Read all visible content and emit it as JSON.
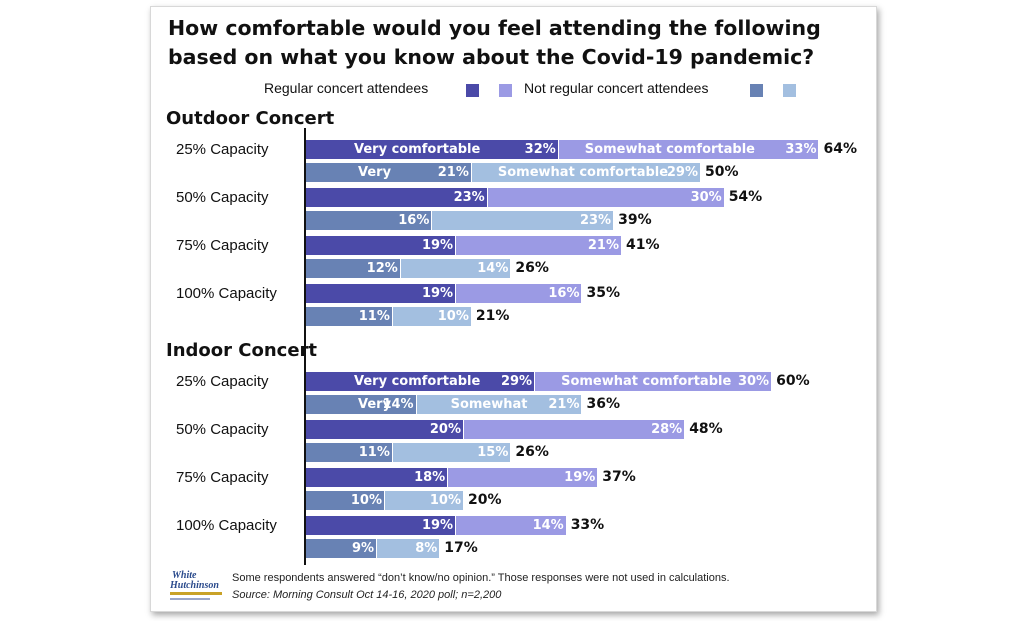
{
  "chart_data": {
    "type": "bar",
    "orientation": "horizontal",
    "stacked": true,
    "title": "How comfortable would you feel attending the following based on what you know about the Covid-19 pandemic?",
    "legend": {
      "regular_label": "Regular concert attendees",
      "not_regular_label": "Not regular concert attendees",
      "colors": {
        "regular_very": "#4b4aa8",
        "regular_somewhat": "#9b9ae4",
        "not_very": "#6882b4",
        "not_somewhat": "#a3bfe0"
      }
    },
    "segment_labels": {
      "very_comfortable": "Very comfortable",
      "somewhat_comfortable": "Somewhat comfortable",
      "very": "Very",
      "somewhat": "Somewhat"
    },
    "sections": [
      {
        "name": "Outdoor Concert",
        "rows": [
          {
            "capacity": "25% Capacity",
            "regular": {
              "very": 32,
              "somewhat": 33,
              "total": 64,
              "very_label": "Very comfortable",
              "somewhat_label": "Somewhat comfortable"
            },
            "not_regular": {
              "very": 21,
              "somewhat": 29,
              "total": 50,
              "very_label": "Very",
              "somewhat_label": "Somewhat comfortable"
            }
          },
          {
            "capacity": "50% Capacity",
            "regular": {
              "very": 23,
              "somewhat": 30,
              "total": 54
            },
            "not_regular": {
              "very": 16,
              "somewhat": 23,
              "total": 39
            }
          },
          {
            "capacity": "75% Capacity",
            "regular": {
              "very": 19,
              "somewhat": 21,
              "total": 41
            },
            "not_regular": {
              "very": 12,
              "somewhat": 14,
              "total": 26
            }
          },
          {
            "capacity": "100% Capacity",
            "regular": {
              "very": 19,
              "somewhat": 16,
              "total": 35
            },
            "not_regular": {
              "very": 11,
              "somewhat": 10,
              "total": 21
            }
          }
        ]
      },
      {
        "name": "Indoor Concert",
        "rows": [
          {
            "capacity": "25% Capacity",
            "regular": {
              "very": 29,
              "somewhat": 30,
              "total": 60,
              "very_label": "Very comfortable",
              "somewhat_label": "Somewhat comfortable"
            },
            "not_regular": {
              "very": 14,
              "somewhat": 21,
              "total": 36,
              "very_label": "Very",
              "somewhat_label": "Somewhat"
            }
          },
          {
            "capacity": "50% Capacity",
            "regular": {
              "very": 20,
              "somewhat": 28,
              "total": 48
            },
            "not_regular": {
              "very": 11,
              "somewhat": 15,
              "total": 26
            }
          },
          {
            "capacity": "75% Capacity",
            "regular": {
              "very": 18,
              "somewhat": 19,
              "total": 37
            },
            "not_regular": {
              "very": 10,
              "somewhat": 10,
              "total": 20
            }
          },
          {
            "capacity": "100% Capacity",
            "regular": {
              "very": 19,
              "somewhat": 14,
              "total": 33
            },
            "not_regular": {
              "very": 9,
              "somewhat": 8,
              "total": 17
            }
          }
        ]
      }
    ]
  },
  "footnote": "Some respondents answered “don’t know/no opinion.” Those responses were not used in calculations.",
  "source": "Source: Morning Consult Oct 14-16, 2020 poll; n=2,200",
  "logo": {
    "line1": "White",
    "line2": "Hutchinson"
  }
}
